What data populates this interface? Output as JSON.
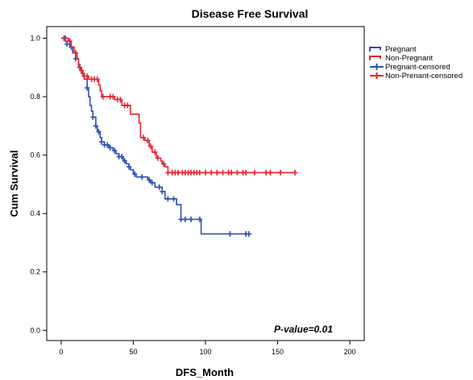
{
  "chart_data": {
    "type": "line",
    "subtype": "kaplan-meier-step",
    "title": "Disease Free Survival",
    "xlabel": "DFS_Month",
    "ylabel": "Cum Survival",
    "xlim": [
      -10,
      210
    ],
    "ylim": [
      -0.035,
      1.04
    ],
    "xticks": [
      0,
      50,
      100,
      150,
      200
    ],
    "yticks": [
      0.0,
      0.2,
      0.4,
      0.6,
      0.8,
      1.0
    ],
    "ytick_labels": [
      "0.0",
      "0.2",
      "0.4",
      "0.6",
      "0.8",
      "1.0"
    ],
    "grid": false,
    "legend_position": "top-right",
    "annotation": "P-value=0.01",
    "legend": [
      "Pregnant",
      "Non-Pregnant",
      "Pregnant-censored",
      "Non-Prenant-censored"
    ],
    "series": [
      {
        "name": "Pregnant",
        "color": "#2e4fb5",
        "steps": [
          [
            0,
            1.0
          ],
          [
            3,
            0.99
          ],
          [
            4,
            0.98
          ],
          [
            6,
            0.97
          ],
          [
            8,
            0.95
          ],
          [
            10,
            0.93
          ],
          [
            12,
            0.9
          ],
          [
            14,
            0.88
          ],
          [
            16,
            0.86
          ],
          [
            18,
            0.83
          ],
          [
            19,
            0.8
          ],
          [
            20,
            0.77
          ],
          [
            21,
            0.75
          ],
          [
            22,
            0.73
          ],
          [
            24,
            0.7
          ],
          [
            25,
            0.68
          ],
          [
            27,
            0.66
          ],
          [
            28,
            0.645
          ],
          [
            30,
            0.635
          ],
          [
            33,
            0.625
          ],
          [
            36,
            0.615
          ],
          [
            38,
            0.605
          ],
          [
            40,
            0.595
          ],
          [
            43,
            0.58
          ],
          [
            45,
            0.57
          ],
          [
            47,
            0.56
          ],
          [
            48,
            0.55
          ],
          [
            50,
            0.535
          ],
          [
            52,
            0.525
          ],
          [
            60,
            0.515
          ],
          [
            62,
            0.505
          ],
          [
            65,
            0.49
          ],
          [
            70,
            0.475
          ],
          [
            72,
            0.45
          ],
          [
            80,
            0.43
          ],
          [
            83,
            0.38
          ],
          [
            97,
            0.33
          ],
          [
            132,
            0.33
          ]
        ],
        "censored_x": [
          2,
          4,
          7,
          10,
          13,
          18,
          22,
          24,
          26,
          28,
          30,
          32,
          34,
          37,
          40,
          42,
          44,
          47,
          51,
          56,
          61,
          63,
          68,
          70,
          74,
          78,
          83,
          86,
          90,
          96,
          117,
          128,
          130
        ]
      },
      {
        "name": "Non-Pregnant",
        "color": "#e8222a",
        "steps": [
          [
            0,
            1.0
          ],
          [
            5,
            0.99
          ],
          [
            7,
            0.97
          ],
          [
            9,
            0.95
          ],
          [
            11,
            0.93
          ],
          [
            12,
            0.91
          ],
          [
            13,
            0.89
          ],
          [
            15,
            0.87
          ],
          [
            19,
            0.86
          ],
          [
            26,
            0.84
          ],
          [
            27,
            0.82
          ],
          [
            28,
            0.8
          ],
          [
            37,
            0.79
          ],
          [
            42,
            0.77
          ],
          [
            48,
            0.74
          ],
          [
            54,
            0.71
          ],
          [
            55,
            0.66
          ],
          [
            58,
            0.65
          ],
          [
            61,
            0.63
          ],
          [
            63,
            0.61
          ],
          [
            66,
            0.59
          ],
          [
            69,
            0.58
          ],
          [
            70,
            0.57
          ],
          [
            72,
            0.56
          ],
          [
            74,
            0.54
          ],
          [
            162,
            0.54
          ]
        ],
        "censored_x": [
          3,
          6,
          10,
          14,
          16,
          18,
          21,
          23,
          25,
          29,
          34,
          36,
          39,
          41,
          44,
          46,
          57,
          60,
          62,
          65,
          67,
          71,
          74,
          77,
          79,
          81,
          84,
          86,
          88,
          90,
          92,
          94,
          96,
          100,
          104,
          108,
          112,
          116,
          118,
          122,
          126,
          128,
          134,
          142,
          145,
          152,
          162
        ]
      }
    ]
  }
}
